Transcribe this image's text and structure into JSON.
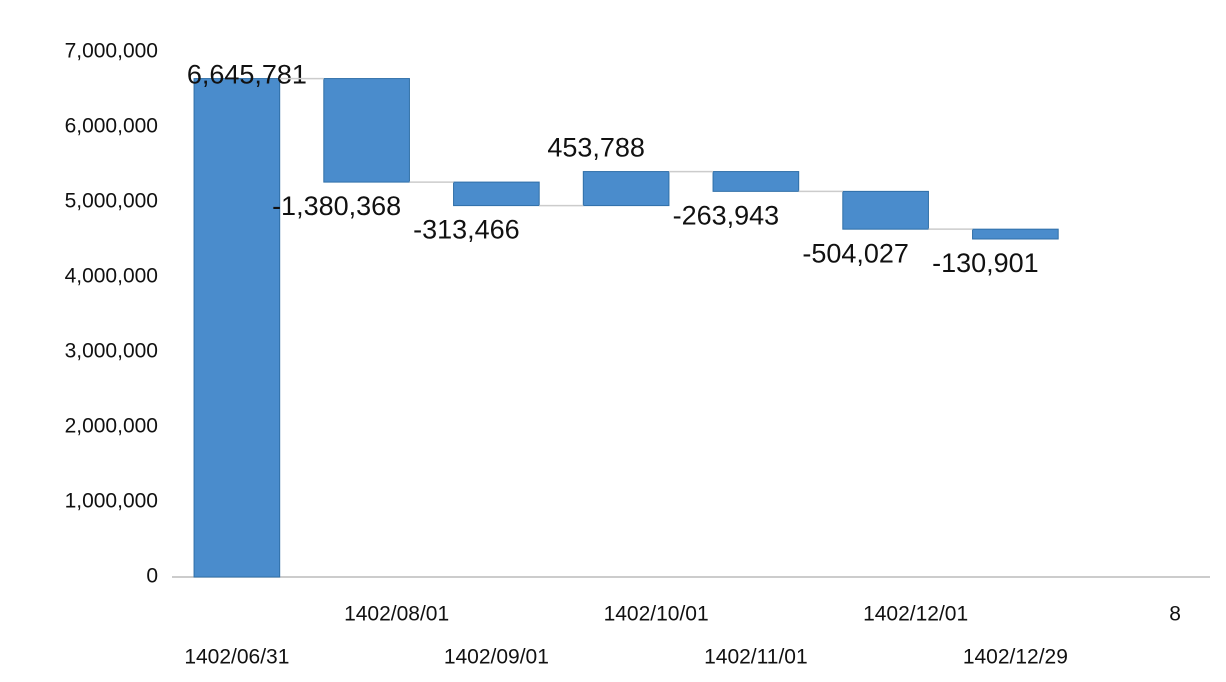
{
  "chart_data": {
    "type": "waterfall",
    "categories": [
      "1402/06/31",
      "1402/08/01",
      "1402/09/01",
      "1402/10/01",
      "1402/11/01",
      "1402/12/01",
      "1402/12/29",
      "8"
    ],
    "values": [
      6645781,
      -1380368,
      -313466,
      453788,
      -263943,
      -504027,
      -130901,
      null
    ],
    "value_labels": [
      "6,645,781",
      "-1,380,368",
      "-313,466",
      "453,788",
      "-263,943",
      "-504,027",
      "-130,901",
      null
    ],
    "color": "#4a8ccc",
    "ylim": [
      0,
      7000000
    ],
    "yticks": [
      {
        "value": 0,
        "label": "0"
      },
      {
        "value": 1000000,
        "label": "1,000,000"
      },
      {
        "value": 2000000,
        "label": "2,000,000"
      },
      {
        "value": 3000000,
        "label": "3,000,000"
      },
      {
        "value": 4000000,
        "label": "4,000,000"
      },
      {
        "value": 5000000,
        "label": "5,000,000"
      },
      {
        "value": 6000000,
        "label": "6,000,000"
      },
      {
        "value": 7000000,
        "label": "7,000,000"
      }
    ],
    "grid": false
  }
}
